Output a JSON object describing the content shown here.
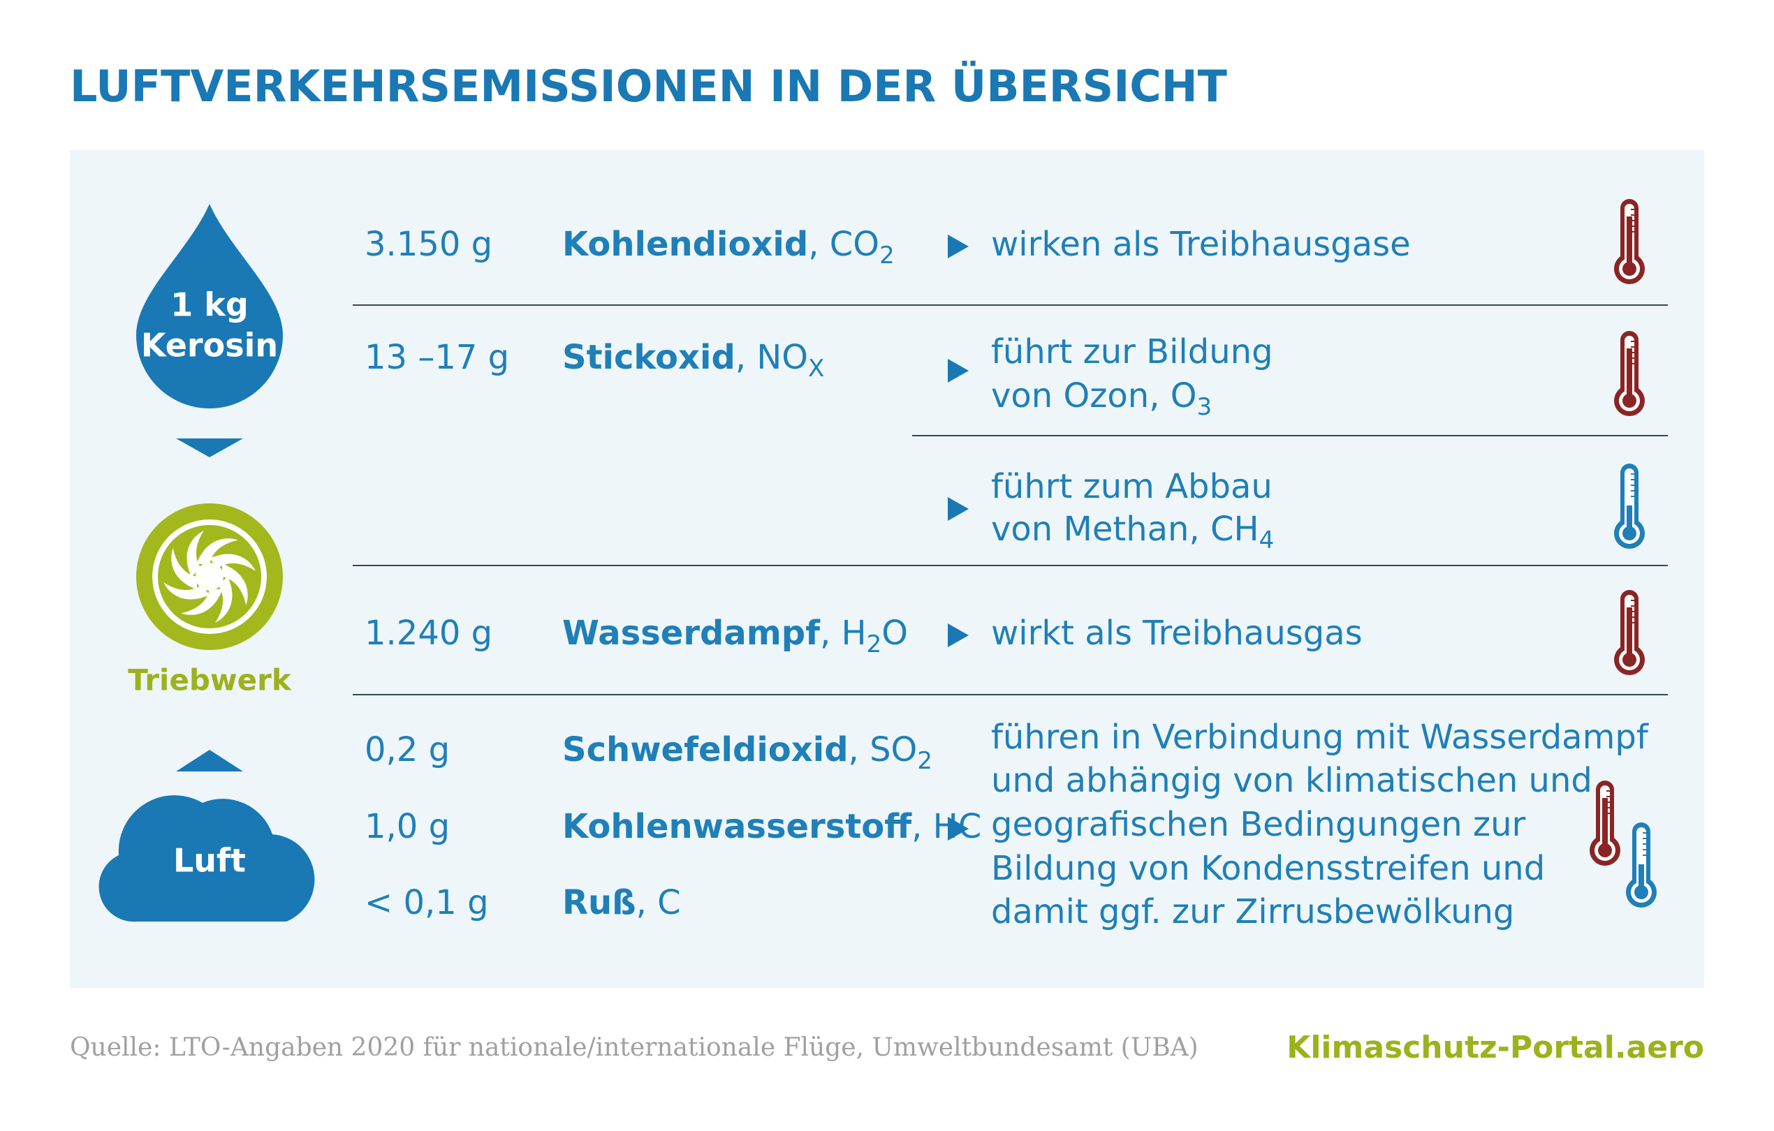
{
  "title": "LUFTVERKEHRSEMISSIONEN IN DER ÜBERSICHT",
  "flow": {
    "input": [
      "1 kg",
      "Kerosin"
    ],
    "engine": "Triebwerk",
    "air": "Luft"
  },
  "rows": [
    {
      "amount": "3.150 g",
      "name": "Kohlendioxid",
      "formula": ", CO",
      "sub": "2"
    },
    {
      "amount": "13 –17 g",
      "name": "Stickoxid",
      "formula": ", NO",
      "sub": "X"
    },
    {
      "amount": "1.240 g",
      "name": "Wasserdampf",
      "formula": ", H",
      "sub": "2",
      "after": "O"
    },
    {
      "amount": "0,2 g",
      "name": "Schwefeldioxid",
      "formula": ", SO",
      "sub": "2"
    },
    {
      "amount": "1,0 g",
      "name": "Kohlenwasserstoff",
      "formula": ", HC"
    },
    {
      "amount": "< 0,1 g",
      "name": "Ruß",
      "formula": ", C"
    }
  ],
  "effects": [
    {
      "lines": [
        {
          "text": "wirken als Treibhausgase"
        }
      ]
    },
    {
      "lines": [
        {
          "text": "führt zur Bildung"
        },
        {
          "text": "von Ozon, O",
          "sub": "3"
        }
      ]
    },
    {
      "lines": [
        {
          "text": "führt zum Abbau"
        },
        {
          "text": "von Methan, CH",
          "sub": "4"
        }
      ]
    },
    {
      "lines": [
        {
          "text": "wirkt als Treibhausgas"
        }
      ]
    },
    {
      "lines": [
        {
          "text": "führen in Verbindung mit Wasserdampf"
        },
        {
          "text": "und abhängig von klimatischen und"
        },
        {
          "text": "geografischen Bedingungen zur"
        },
        {
          "text": "Bildung von Kondensstreifen und"
        },
        {
          "text": "damit ggf. zur Zirrusbewölkung"
        }
      ]
    }
  ],
  "footer": {
    "source": "Quelle: LTO-Angaben 2020 für nationale/internationale Flüge, Umweltbundesamt (UBA)",
    "brand": "Klimaschutz-Portal.aero"
  }
}
